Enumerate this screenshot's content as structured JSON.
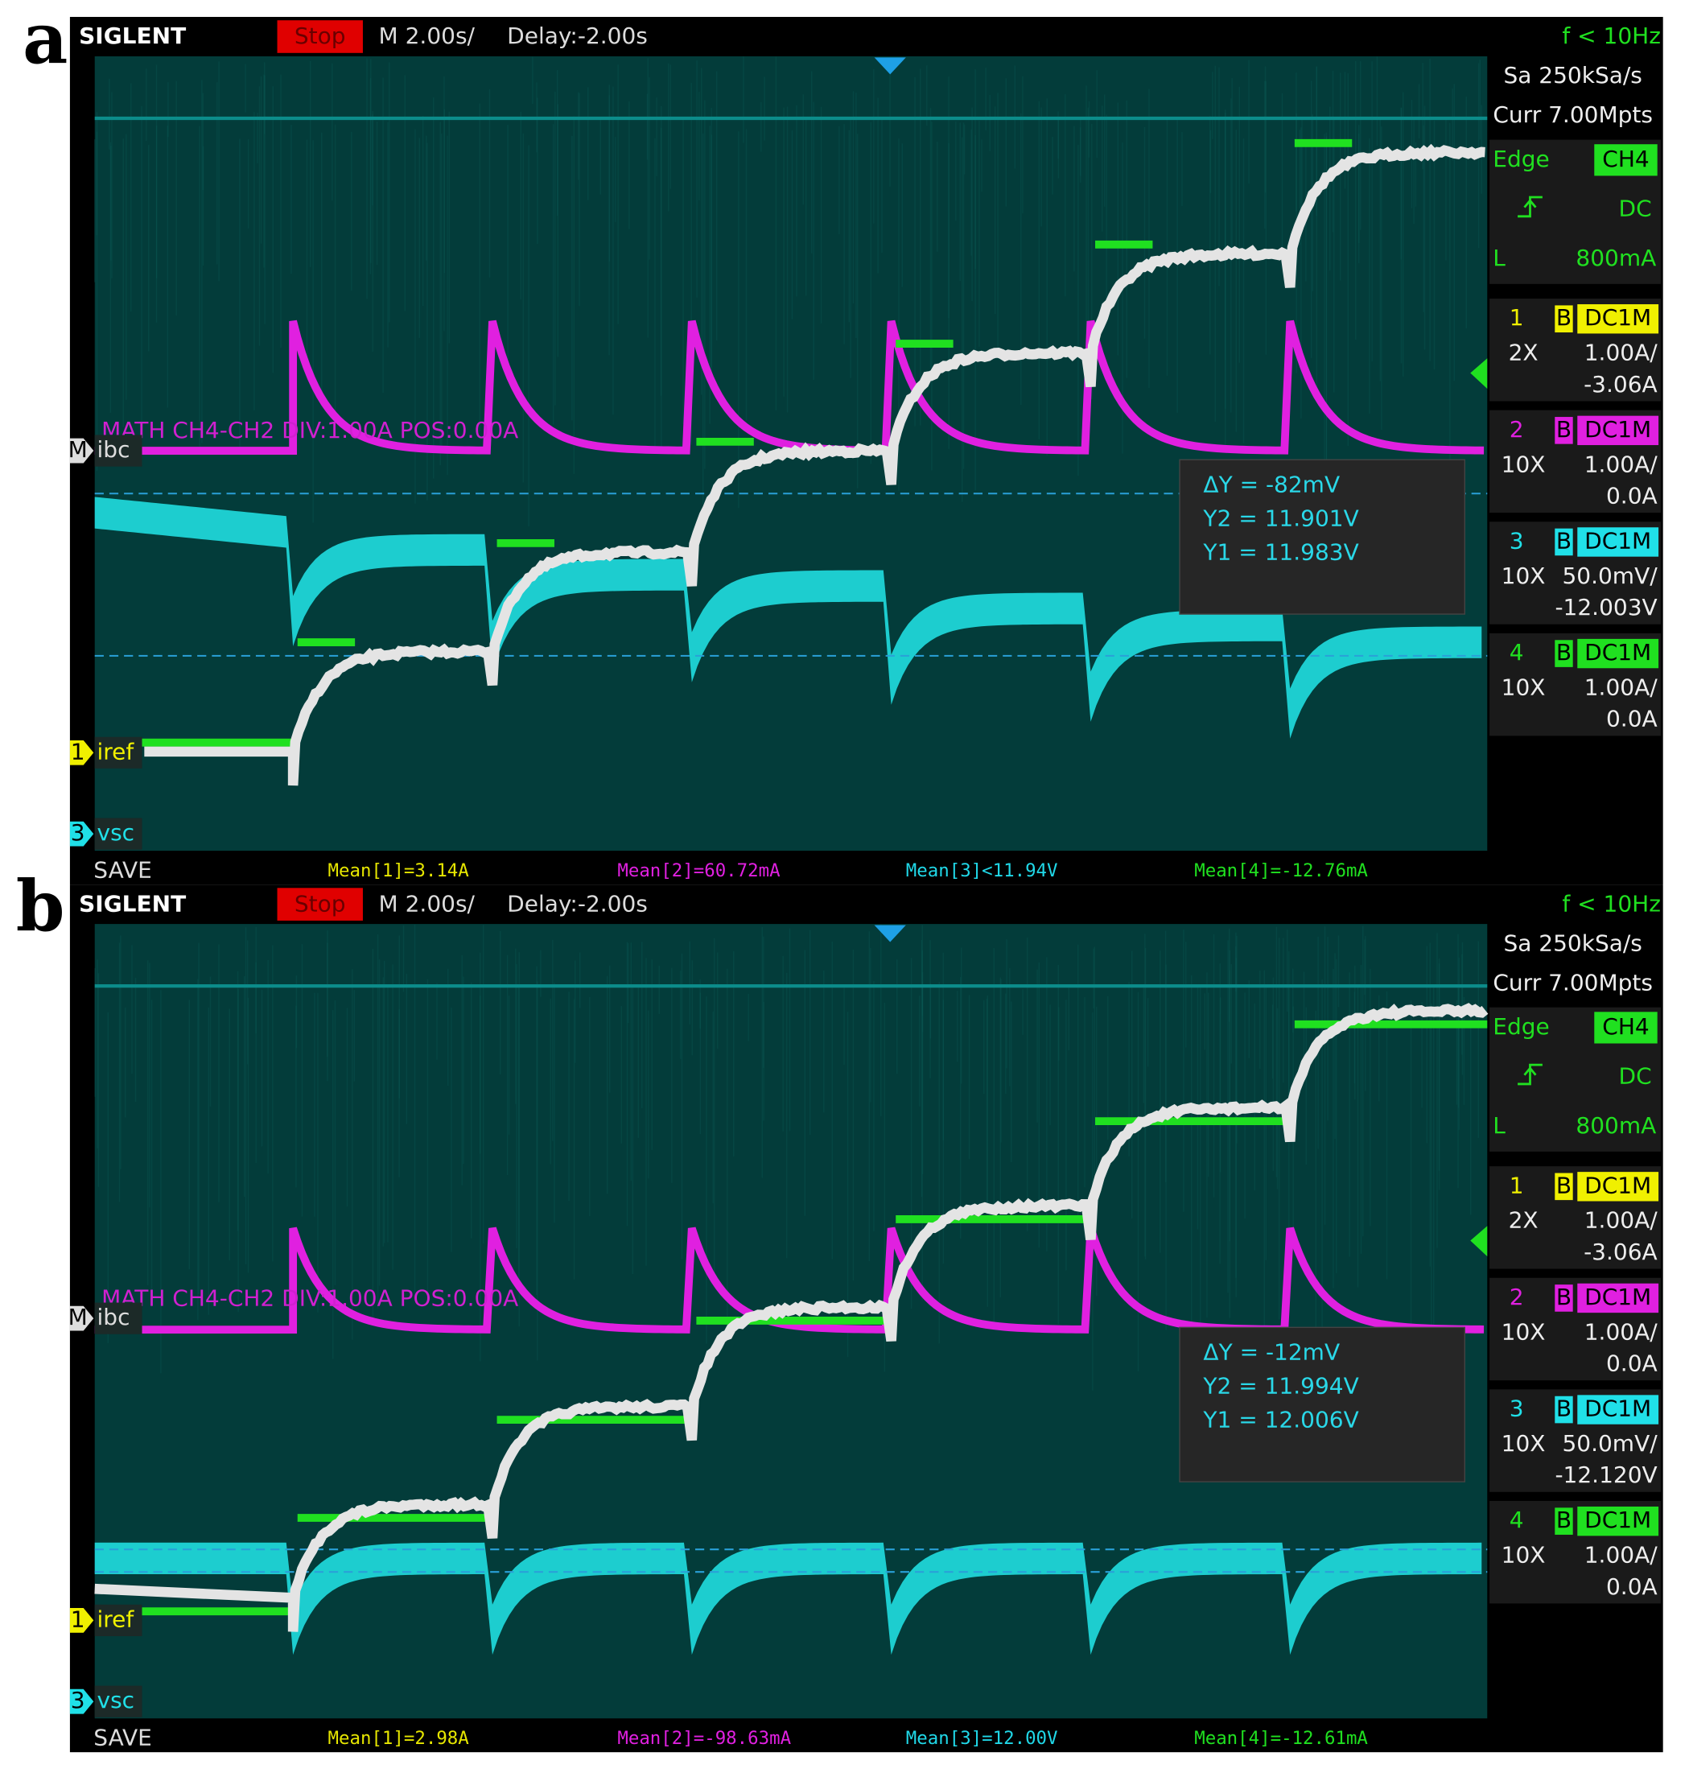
{
  "panels": [
    {
      "label": "a",
      "header": {
        "brand": "SIGLENT",
        "status": "Stop",
        "timebase": "M 2.00s/",
        "delay": "Delay:-2.00s",
        "trigger_freq": "f < 10Hz"
      },
      "acquisition": {
        "sample_rate": "Sa 250kSa/s",
        "memory": "Curr 7.00Mpts"
      },
      "trigger": {
        "type": "Edge",
        "source": "CH4",
        "coupling": "DC",
        "level_prefix": "L",
        "level": "800mA"
      },
      "channels": [
        {
          "number": "1",
          "bandwidth": "B",
          "coupling": "DC1M",
          "probe": "2X",
          "scale": "1.00A/",
          "offset": "-3.06A"
        },
        {
          "number": "2",
          "bandwidth": "B",
          "coupling": "DC1M",
          "probe": "10X",
          "scale": "1.00A/",
          "offset": "0.0A"
        },
        {
          "number": "3",
          "bandwidth": "B",
          "coupling": "DC1M",
          "probe": "10X",
          "scale": "50.0mV/",
          "offset": "-12.003V"
        },
        {
          "number": "4",
          "bandwidth": "B",
          "coupling": "DC1M",
          "probe": "10X",
          "scale": "1.00A/",
          "offset": "0.0A"
        }
      ],
      "math": "MATH  CH4-CH2  DIV:1.00A  POS:0.00A",
      "traces": [
        {
          "marker": "M",
          "name": "ibc"
        },
        {
          "marker": "1",
          "name": "iref"
        },
        {
          "marker": "3",
          "name": "vsc"
        }
      ],
      "measurement": [
        "ΔY = -82mV",
        "Y2 = 11.901V",
        "Y1 = 11.983V"
      ],
      "footer": {
        "save": "SAVE",
        "means": [
          "Mean[1]=3.14A",
          "Mean[2]=60.72mA",
          "Mean[3]<11.94V",
          "Mean[4]=-12.76mA"
        ]
      }
    },
    {
      "label": "b",
      "header": {
        "brand": "SIGLENT",
        "status": "Stop",
        "timebase": "M 2.00s/",
        "delay": "Delay:-2.00s",
        "trigger_freq": "f < 10Hz"
      },
      "acquisition": {
        "sample_rate": "Sa 250kSa/s",
        "memory": "Curr 7.00Mpts"
      },
      "trigger": {
        "type": "Edge",
        "source": "CH4",
        "coupling": "DC",
        "level_prefix": "L",
        "level": "800mA"
      },
      "channels": [
        {
          "number": "1",
          "bandwidth": "B",
          "coupling": "DC1M",
          "probe": "2X",
          "scale": "1.00A/",
          "offset": "-3.06A"
        },
        {
          "number": "2",
          "bandwidth": "B",
          "coupling": "DC1M",
          "probe": "10X",
          "scale": "1.00A/",
          "offset": "0.0A"
        },
        {
          "number": "3",
          "bandwidth": "B",
          "coupling": "DC1M",
          "probe": "10X",
          "scale": "50.0mV/",
          "offset": "-12.120V"
        },
        {
          "number": "4",
          "bandwidth": "B",
          "coupling": "DC1M",
          "probe": "10X",
          "scale": "1.00A/",
          "offset": "0.0A"
        }
      ],
      "math": "MATH  CH4-CH2  DIV:1.00A  POS:0.00A",
      "traces": [
        {
          "marker": "M",
          "name": "ibc"
        },
        {
          "marker": "1",
          "name": "iref"
        },
        {
          "marker": "3",
          "name": "vsc"
        }
      ],
      "measurement": [
        "ΔY = -12mV",
        "Y2 = 11.994V",
        "Y1 = 12.006V"
      ],
      "footer": {
        "save": "SAVE",
        "means": [
          "Mean[1]=2.98A",
          "Mean[2]=-98.63mA",
          "Mean[3]=12.00V",
          "Mean[4]=-12.61mA"
        ]
      }
    }
  ]
}
